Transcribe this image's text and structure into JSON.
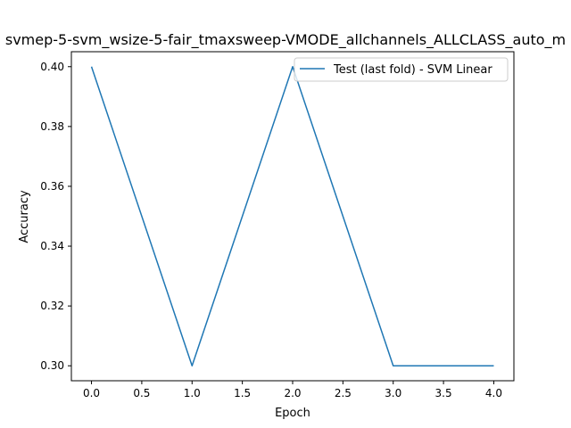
{
  "chart_data": {
    "type": "line",
    "title": "svmep-5-svm_wsize-5-fair_tmaxsweep-VMODE_allchannels_ALLCLASS_auto_m",
    "xlabel": "Epoch",
    "ylabel": "Accuracy",
    "xlim": [
      -0.2,
      4.2
    ],
    "ylim": [
      0.295,
      0.405
    ],
    "xticks": [
      0.0,
      0.5,
      1.0,
      1.5,
      2.0,
      2.5,
      3.0,
      3.5,
      4.0
    ],
    "xtick_labels": [
      "0.0",
      "0.5",
      "1.0",
      "1.5",
      "2.0",
      "2.5",
      "3.0",
      "3.5",
      "4.0"
    ],
    "yticks": [
      0.3,
      0.32,
      0.34,
      0.36,
      0.38,
      0.4
    ],
    "ytick_labels": [
      "0.30",
      "0.32",
      "0.34",
      "0.36",
      "0.38",
      "0.40"
    ],
    "grid": false,
    "legend_position": "top-right",
    "series": [
      {
        "name": "Test (last fold) - SVM Linear",
        "color": "#1f77b4",
        "x": [
          0,
          1,
          2,
          3,
          4
        ],
        "y": [
          0.4,
          0.3,
          0.4,
          0.3,
          0.3
        ]
      }
    ]
  }
}
